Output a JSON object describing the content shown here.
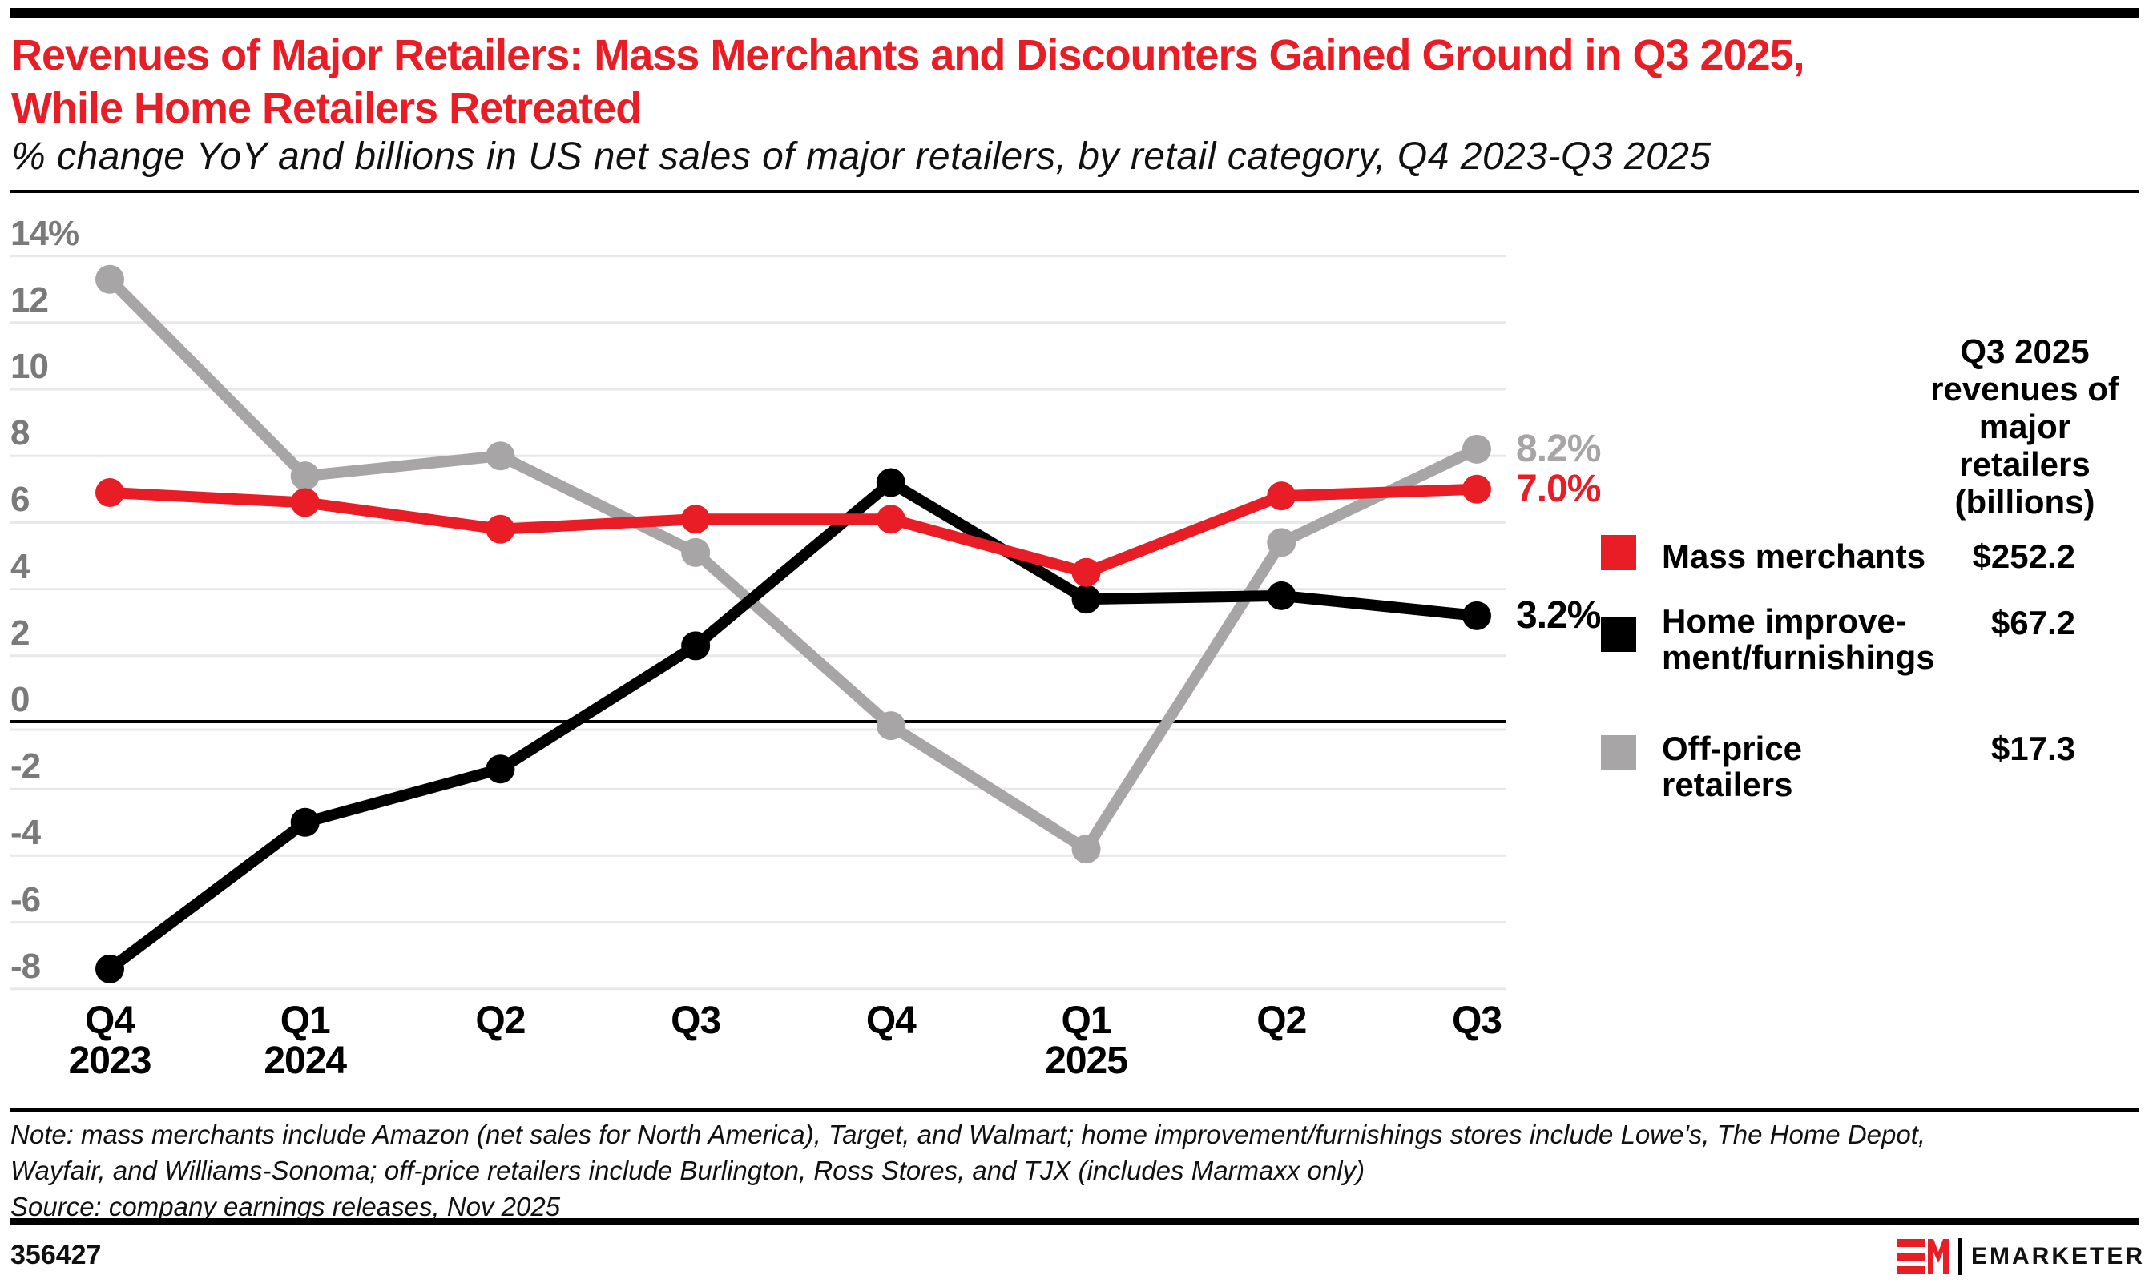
{
  "header": {
    "title": "Revenues of Major Retailers: Mass Merchants and Discounters Gained Ground in Q3 2025,\nWhile Home Retailers Retreated",
    "subtitle": "% change YoY and billions in US net sales of major retailers, by retail category, Q4 2023-Q3 2025"
  },
  "colors": {
    "accent_red": "#e91d25",
    "line_black": "#000000",
    "line_gray": "#a7a5a5",
    "axis_label_gray": "#7a7a7a",
    "gridline": "#e8e8e8"
  },
  "chart_data": {
    "type": "line",
    "title": "Revenues of Major Retailers: Mass Merchants and Discounters Gained Ground in Q3 2025, While Home Retailers Retreated",
    "subtitle": "% change YoY and billions in US net sales of major retailers, by retail category, Q4 2023-Q3 2025",
    "categories": [
      "Q4 2023",
      "Q1 2024",
      "Q2 2024",
      "Q3 2024",
      "Q4 2024",
      "Q1 2025",
      "Q2 2025",
      "Q3 2025"
    ],
    "x_tick_labels": [
      {
        "quarter": "Q4",
        "year": "2023"
      },
      {
        "quarter": "Q1",
        "year": "2024"
      },
      {
        "quarter": "Q2",
        "year": ""
      },
      {
        "quarter": "Q3",
        "year": ""
      },
      {
        "quarter": "Q4",
        "year": ""
      },
      {
        "quarter": "Q1",
        "year": "2025"
      },
      {
        "quarter": "Q2",
        "year": ""
      },
      {
        "quarter": "Q3",
        "year": ""
      }
    ],
    "y_axis": {
      "min": -8,
      "max": 14,
      "grid": true,
      "ticks": [
        {
          "value": 14,
          "label": "14%"
        },
        {
          "value": 12,
          "label": "12"
        },
        {
          "value": 10,
          "label": "10"
        },
        {
          "value": 8,
          "label": "8"
        },
        {
          "value": 6,
          "label": "6"
        },
        {
          "value": 4,
          "label": "4"
        },
        {
          "value": 2,
          "label": "2"
        },
        {
          "value": 0,
          "label": "0"
        },
        {
          "value": -2,
          "label": "-2"
        },
        {
          "value": -4,
          "label": "-4"
        },
        {
          "value": -6,
          "label": "-6"
        },
        {
          "value": -8,
          "label": "-8"
        }
      ]
    },
    "series": [
      {
        "name": "Mass merchants",
        "color": "#e91d25",
        "values": [
          6.9,
          6.6,
          5.8,
          6.1,
          6.1,
          4.5,
          6.8,
          7.0
        ],
        "end_label": "7.0%"
      },
      {
        "name": "Home improvement/furnishings",
        "color": "#000000",
        "values": [
          -7.4,
          -3.0,
          -1.4,
          2.3,
          7.2,
          3.7,
          3.8,
          3.2
        ],
        "end_label": "3.2%"
      },
      {
        "name": "Off-price retailers",
        "color": "#a7a5a5",
        "values": [
          13.3,
          7.4,
          8.0,
          5.1,
          -0.1,
          -3.8,
          5.4,
          8.2
        ],
        "end_label": "8.2%"
      }
    ],
    "legend_position": "right"
  },
  "legend": {
    "header": "Q3 2025\nrevenues of\nmajor retailers\n(billions)",
    "items": [
      {
        "label": "Mass merchants",
        "value": "$252.2",
        "color": "#e91d25"
      },
      {
        "label": "Home improve-\nment/furnishings",
        "value": "$67.2",
        "color": "#000000"
      },
      {
        "label": "Off-price retailers",
        "value": "$17.3",
        "color": "#a7a5a5"
      }
    ]
  },
  "footer": {
    "note": "Note: mass merchants include Amazon (net sales for North America), Target, and Walmart; home improvement/furnishings stores include Lowe's, The Home Depot,\nWayfair, and Williams-Sonoma; off-price retailers include Burlington, Ross Stores, and TJX (includes Marmaxx only)",
    "source": "Source: company earnings releases, Nov 2025",
    "chart_id": "356427",
    "logo_text": "EMARKETER"
  }
}
